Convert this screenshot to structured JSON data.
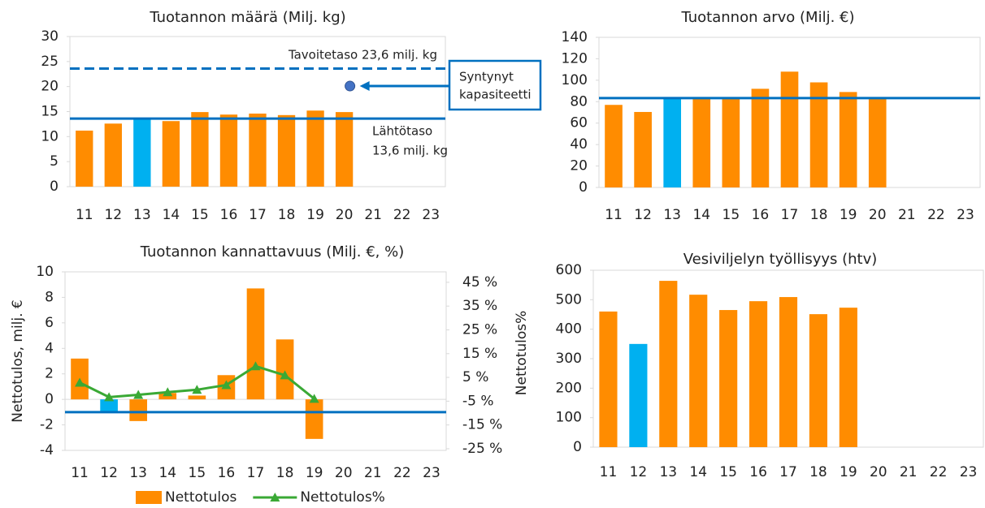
{
  "chart_data": [
    {
      "type": "bar",
      "title": "Tuotannon määrä (Milj. kg)",
      "categories": [
        "11",
        "12",
        "13",
        "14",
        "15",
        "16",
        "17",
        "18",
        "19",
        "20",
        "21",
        "22",
        "23"
      ],
      "values": [
        11.2,
        12.6,
        13.5,
        13.1,
        14.9,
        14.4,
        14.6,
        14.3,
        15.2,
        14.9,
        null,
        null,
        null
      ],
      "colors": [
        "#ff8c00",
        "#ff8c00",
        "#00b0f0",
        "#ff8c00",
        "#ff8c00",
        "#ff8c00",
        "#ff8c00",
        "#ff8c00",
        "#ff8c00",
        "#ff8c00",
        null,
        null,
        null
      ],
      "ylim": [
        0,
        30
      ],
      "yticks": [
        0,
        5,
        10,
        15,
        20,
        25,
        30
      ],
      "grid": false,
      "reference_lines": [
        {
          "value": 23.6,
          "label": [
            "Tavoitetaso 23,6 milj. kg"
          ],
          "style": "dashed",
          "color": "#0070c0"
        },
        {
          "value": 13.6,
          "label": [
            "Lähtötaso",
            "13,6 milj. kg"
          ],
          "style": "solid",
          "color": "#0070c0"
        }
      ],
      "annotation": {
        "text": [
          "Syntynyt",
          "kapasiteetti"
        ],
        "value": 20.1,
        "color": "#0070c0",
        "marker_color": "#4472c4"
      }
    },
    {
      "type": "bar",
      "title": "Tuotannon arvo (Milj. €)",
      "categories": [
        "11",
        "12",
        "13",
        "14",
        "15",
        "16",
        "17",
        "18",
        "19",
        "20",
        "21",
        "22",
        "23"
      ],
      "values": [
        77,
        70.4,
        83,
        83,
        83,
        92,
        108,
        98,
        89,
        83,
        null,
        null,
        null
      ],
      "colors": [
        "#ff8c00",
        "#ff8c00",
        "#00b0f0",
        "#ff8c00",
        "#ff8c00",
        "#ff8c00",
        "#ff8c00",
        "#ff8c00",
        "#ff8c00",
        "#ff8c00",
        null,
        null,
        null
      ],
      "ylim": [
        0,
        140
      ],
      "yticks": [
        0,
        20,
        40,
        60,
        80,
        100,
        120,
        140
      ],
      "grid": false,
      "reference_lines": [
        {
          "value": 83.3,
          "style": "solid",
          "color": "#0070c0"
        }
      ]
    },
    {
      "type": "combo",
      "title": "Tuotannon kannattavuus (Milj. €, %)",
      "categories": [
        "11",
        "12",
        "13",
        "14",
        "15",
        "16",
        "17",
        "18",
        "19",
        "20",
        "21",
        "22",
        "23"
      ],
      "ylabel": "Nettotulos, milj. €",
      "y2label": "Nettotulos%",
      "ylim": [
        -4,
        10
      ],
      "yticks": [
        -4,
        -2,
        0,
        2,
        4,
        6,
        8,
        10
      ],
      "y2lim": [
        -25.7,
        49.4
      ],
      "y2ticks": [
        {
          "value": -25,
          "label": "-25 %"
        },
        {
          "value": -15,
          "label": "-15 %"
        },
        {
          "value": -5,
          "label": "-5 %"
        },
        {
          "value": 5,
          "label": "5 %"
        },
        {
          "value": 15,
          "label": "15 %"
        },
        {
          "value": 25,
          "label": "25 %"
        },
        {
          "value": 35,
          "label": "35 %"
        },
        {
          "value": 45,
          "label": "45 %"
        }
      ],
      "grid": false,
      "legend": "bottom",
      "series": [
        {
          "name": "Nettotulos",
          "type": "bar",
          "color": "#ff8c00",
          "colors": [
            "#ff8c00",
            "#00b0f0",
            "#ff8c00",
            "#ff8c00",
            "#ff8c00",
            "#ff8c00",
            "#ff8c00",
            "#ff8c00",
            "#ff8c00",
            null,
            null,
            null,
            null
          ],
          "values": [
            3.2,
            -1.0,
            -1.7,
            0.5,
            0.3,
            1.9,
            8.7,
            4.7,
            -3.1,
            null,
            null,
            null,
            null
          ]
        },
        {
          "name": "Nettotulos%",
          "type": "line",
          "axis": "y2",
          "color": "#3aa935",
          "values": [
            2.8,
            -3.3,
            -2.3,
            -1.2,
            -0.2,
            1.8,
            9.7,
            5.9,
            -4.0,
            null,
            null,
            null,
            null
          ]
        }
      ],
      "reference_lines": [
        {
          "value": -1.0,
          "style": "solid",
          "color": "#0070c0"
        }
      ]
    },
    {
      "type": "bar",
      "title": "Vesiviljelyn työllisyys (htv)",
      "categories": [
        "11",
        "12",
        "13",
        "14",
        "15",
        "16",
        "17",
        "18",
        "19",
        "20",
        "21",
        "22",
        "23"
      ],
      "values": [
        460,
        350,
        564,
        517,
        465,
        495,
        509,
        451,
        473,
        null,
        null,
        null,
        null
      ],
      "colors": [
        "#ff8c00",
        "#00b0f0",
        "#ff8c00",
        "#ff8c00",
        "#ff8c00",
        "#ff8c00",
        "#ff8c00",
        "#ff8c00",
        "#ff8c00",
        null,
        null,
        null,
        null
      ],
      "ylim": [
        0,
        600
      ],
      "yticks": [
        0,
        100,
        200,
        300,
        400,
        500,
        600
      ],
      "grid": false
    }
  ]
}
